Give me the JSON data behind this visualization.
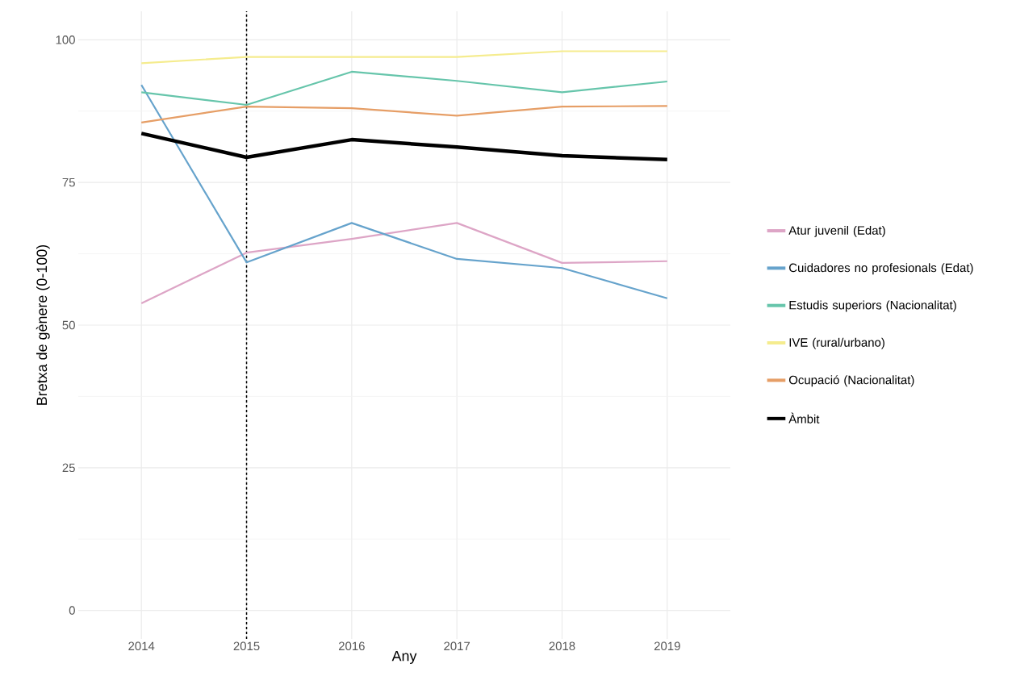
{
  "chart_data": {
    "type": "line",
    "xlabel": "Any",
    "ylabel": "Bretxa de gènere (0-100)",
    "x": [
      2014,
      2015,
      2016,
      2017,
      2018,
      2019
    ],
    "series": [
      {
        "name": "Àmbit",
        "color": "#000000",
        "values": [
          83.6,
          79.4,
          82.5,
          81.2,
          79.7,
          79.0
        ]
      },
      {
        "name": "Atur juvenil (Edat)",
        "color": "#dda5c6",
        "values": [
          53.8,
          62.7,
          65.1,
          67.9,
          60.9,
          61.2
        ]
      },
      {
        "name": "Cuidadores no profesionals (Edat)",
        "color": "#66a3cc",
        "values": [
          92.1,
          61.0,
          67.9,
          61.6,
          60.0,
          54.7
        ]
      },
      {
        "name": "Estudis superiors (Nacionalitat)",
        "color": "#66c5ab",
        "values": [
          90.8,
          88.6,
          94.4,
          92.8,
          90.8,
          92.7
        ]
      },
      {
        "name": "IVE (rural/urbano)",
        "color": "#f5ec8e",
        "values": [
          95.9,
          97.0,
          97.0,
          97.0,
          98.0,
          98.0
        ]
      },
      {
        "name": "Ocupació (Nacionalitat)",
        "color": "#e69e66",
        "values": [
          85.5,
          88.3,
          88.0,
          86.7,
          88.3,
          88.4
        ]
      }
    ],
    "xlim": [
      2013.4,
      2019.6
    ],
    "ylim": [
      -5,
      105
    ],
    "xticks": [
      2014,
      2015,
      2016,
      2017,
      2018,
      2019
    ],
    "yticks": [
      0,
      25,
      50,
      75,
      100
    ],
    "ref_lines": [
      {
        "axis": "x",
        "value": 2015,
        "color": "#000000",
        "line_style": "dashed"
      }
    ],
    "grid": true,
    "legend": "right",
    "line_style": "solid",
    "marker": "none"
  }
}
